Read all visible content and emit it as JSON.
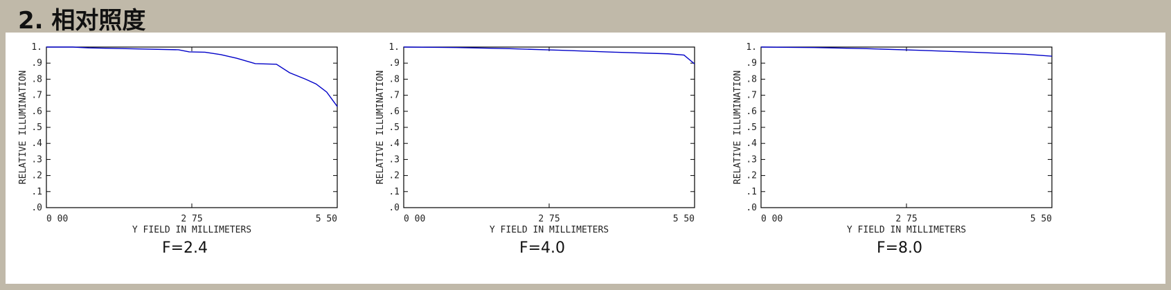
{
  "header": {
    "title": "2. 相对照度"
  },
  "chart_data": [
    {
      "type": "line",
      "caption": "F=2.4",
      "xlabel": "Y FIELD IN MILLIMETERS",
      "ylabel": "RELATIVE ILLUMINATION",
      "xlim": [
        0,
        5.5
      ],
      "ylim": [
        0,
        1
      ],
      "xticks": [
        {
          "value": 0,
          "label": "0 00"
        },
        {
          "value": 2.75,
          "label": "2 75"
        },
        {
          "value": 5.5,
          "label": "5 50"
        }
      ],
      "yticks": [
        {
          "value": 0,
          "label": ".0"
        },
        {
          "value": 0.1,
          "label": ".1"
        },
        {
          "value": 0.2,
          "label": ".2"
        },
        {
          "value": 0.3,
          "label": ".3"
        },
        {
          "value": 0.4,
          "label": ".4"
        },
        {
          "value": 0.5,
          "label": ".5"
        },
        {
          "value": 0.6,
          "label": ".6"
        },
        {
          "value": 0.7,
          "label": ".7"
        },
        {
          "value": 0.8,
          "label": ".8"
        },
        {
          "value": 0.9,
          "label": ".9"
        },
        {
          "value": 1,
          "label": "1."
        }
      ],
      "color": "#0000c8",
      "x": [
        0,
        0.5,
        0.8,
        1.5,
        2.5,
        2.7,
        3.0,
        3.3,
        3.6,
        3.95,
        4.35,
        4.6,
        4.9,
        5.1,
        5.3,
        5.5
      ],
      "values": [
        1.0,
        1.0,
        0.995,
        0.99,
        0.983,
        0.97,
        0.968,
        0.953,
        0.93,
        0.897,
        0.893,
        0.84,
        0.8,
        0.77,
        0.72,
        0.63
      ]
    },
    {
      "type": "line",
      "caption": "F=4.0",
      "xlabel": "Y FIELD IN MILLIMETERS",
      "ylabel": "RELATIVE ILLUMINATION",
      "xlim": [
        0,
        5.5
      ],
      "ylim": [
        0,
        1
      ],
      "xticks": [
        {
          "value": 0,
          "label": "0 00"
        },
        {
          "value": 2.75,
          "label": "2 75"
        },
        {
          "value": 5.5,
          "label": "5 50"
        }
      ],
      "yticks": [
        {
          "value": 0,
          "label": ".0"
        },
        {
          "value": 0.1,
          "label": ".1"
        },
        {
          "value": 0.2,
          "label": ".2"
        },
        {
          "value": 0.3,
          "label": ".3"
        },
        {
          "value": 0.4,
          "label": ".4"
        },
        {
          "value": 0.5,
          "label": ".5"
        },
        {
          "value": 0.6,
          "label": ".6"
        },
        {
          "value": 0.7,
          "label": ".7"
        },
        {
          "value": 0.8,
          "label": ".8"
        },
        {
          "value": 0.9,
          "label": ".9"
        },
        {
          "value": 1,
          "label": "1."
        }
      ],
      "color": "#0000c8",
      "x": [
        0,
        1,
        2,
        3,
        4,
        5,
        5.3,
        5.5
      ],
      "values": [
        1.0,
        0.997,
        0.99,
        0.98,
        0.968,
        0.958,
        0.95,
        0.895
      ]
    },
    {
      "type": "line",
      "caption": "F=8.0",
      "xlabel": "Y FIELD IN MILLIMETERS",
      "ylabel": "RELATIVE ILLUMINATION",
      "xlim": [
        0,
        5.5
      ],
      "ylim": [
        0,
        1
      ],
      "xticks": [
        {
          "value": 0,
          "label": "0 00"
        },
        {
          "value": 2.75,
          "label": "2 75"
        },
        {
          "value": 5.5,
          "label": "5 50"
        }
      ],
      "yticks": [
        {
          "value": 0,
          "label": ".0"
        },
        {
          "value": 0.1,
          "label": ".1"
        },
        {
          "value": 0.2,
          "label": ".2"
        },
        {
          "value": 0.3,
          "label": ".3"
        },
        {
          "value": 0.4,
          "label": ".4"
        },
        {
          "value": 0.5,
          "label": ".5"
        },
        {
          "value": 0.6,
          "label": ".6"
        },
        {
          "value": 0.7,
          "label": ".7"
        },
        {
          "value": 0.8,
          "label": ".8"
        },
        {
          "value": 0.9,
          "label": ".9"
        },
        {
          "value": 1,
          "label": "1."
        }
      ],
      "color": "#0000c8",
      "x": [
        0,
        1,
        2,
        3,
        4,
        5,
        5.5
      ],
      "values": [
        1.0,
        0.997,
        0.99,
        0.98,
        0.968,
        0.955,
        0.943
      ]
    }
  ]
}
